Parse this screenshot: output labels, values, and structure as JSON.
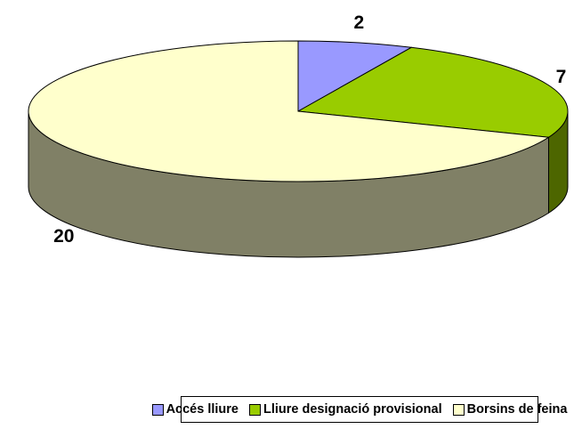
{
  "chart_data": {
    "type": "pie3d",
    "categories": [
      "Accés lliure",
      "Lliure designació provisional",
      "Borsins de feina"
    ],
    "values": [
      2,
      7,
      20
    ],
    "colors": [
      "#9999ff",
      "#99cc00",
      "#ffffcc"
    ],
    "side_colors": [
      "#4d4d80",
      "#4d6600",
      "#808066"
    ],
    "legend": "bottom"
  }
}
